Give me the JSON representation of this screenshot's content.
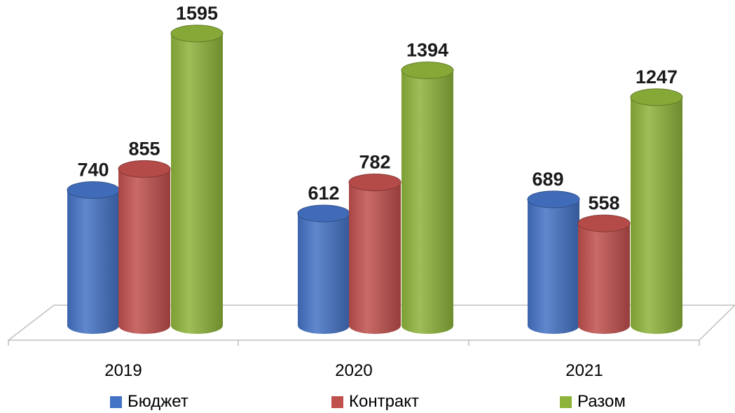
{
  "chart_data": {
    "type": "bar",
    "categories": [
      "2019",
      "2020",
      "2021"
    ],
    "series": [
      {
        "name": "Бюджет",
        "values": [
          740,
          612,
          689
        ],
        "color": "#4472C4"
      },
      {
        "name": "Контракт",
        "values": [
          855,
          782,
          558
        ],
        "color": "#C0504D"
      },
      {
        "name": "Разом",
        "values": [
          1595,
          1394,
          1247
        ],
        "color": "#8DB33A"
      }
    ],
    "title": "",
    "xlabel": "",
    "ylabel": "",
    "ylim": [
      0,
      1600
    ],
    "grid": false,
    "legend_position": "bottom",
    "style": "3d-cylinder"
  }
}
